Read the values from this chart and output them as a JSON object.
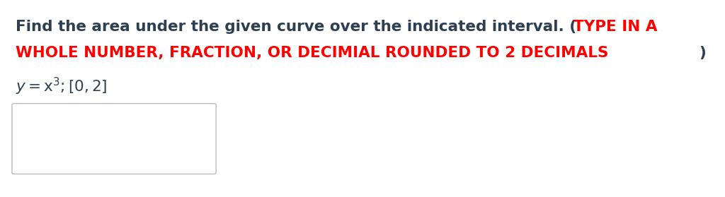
{
  "line1_black": "Find the area under the given curve over the indicated interval. (",
  "line1_red": "TYPE IN A",
  "line2_red": "WHOLE NUMBER, FRACTION, OR DECIMIAL ROUNDED TO 2 DECIMALS",
  "line2_black_end": ")",
  "line3_text": "y = x",
  "line3_super": "3",
  "line3_end": ";[0,2]",
  "black_color": "#2E3F52",
  "red_color": "#FF0000",
  "bg_color": "#FFFFFF",
  "font_size_main": 15.5,
  "font_size_eq": 14.5,
  "fig_width": 10.24,
  "fig_height": 2.79,
  "dpi": 100
}
